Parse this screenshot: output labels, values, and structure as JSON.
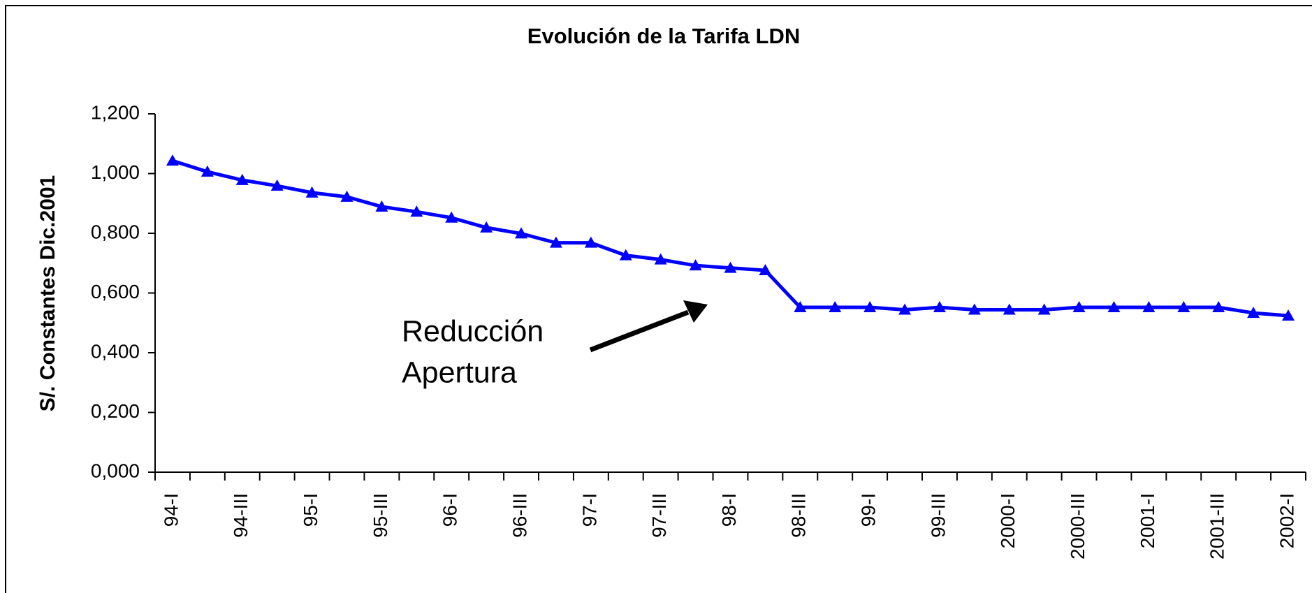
{
  "chart_data": {
    "type": "line",
    "title": "Evolución de la Tarifa LDN",
    "y_label": "S/. Constantes Dic.2001",
    "categories": [
      "94-I",
      null,
      "94-III",
      null,
      "95-I",
      null,
      "95-III",
      null,
      "96-I",
      null,
      "96-III",
      null,
      "97-I",
      null,
      "97-III",
      null,
      "98-I",
      null,
      "98-III",
      null,
      "99-I",
      null,
      "99-III",
      null,
      "2000-I",
      null,
      "2000-III",
      null,
      "2001-I",
      null,
      "2001-III",
      null,
      "2002-I"
    ],
    "series": [
      {
        "name": "Tarifa LDN",
        "color": "#0000ff",
        "values": [
          1.043,
          1.006,
          0.978,
          0.959,
          0.936,
          0.922,
          0.889,
          0.872,
          0.852,
          0.819,
          0.799,
          0.768,
          0.768,
          0.726,
          0.712,
          0.692,
          0.684,
          0.676,
          0.552,
          0.552,
          0.552,
          0.544,
          0.552,
          0.544,
          0.544,
          0.544,
          0.552,
          0.552,
          0.552,
          0.552,
          0.552,
          0.533,
          0.524
        ]
      }
    ],
    "ylim": [
      0,
      1.2
    ],
    "yticks": [
      {
        "value": 0,
        "label": "0,000"
      },
      {
        "value": 0.2,
        "label": "0,200"
      },
      {
        "value": 0.4,
        "label": "0,400"
      },
      {
        "value": 0.6,
        "label": "0,600"
      },
      {
        "value": 0.8,
        "label": "0,800"
      },
      {
        "value": 1,
        "label": "1,000"
      },
      {
        "value": 1.2,
        "label": "1,200"
      }
    ],
    "annotation": [
      "Reducción",
      "Apertura"
    ]
  }
}
